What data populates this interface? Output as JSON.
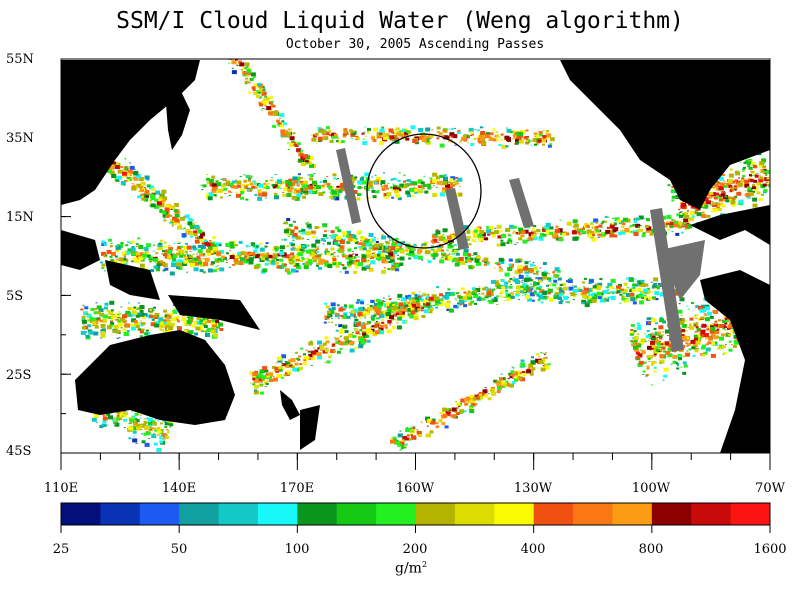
{
  "header": {
    "title": "SSM/I Cloud Liquid Water (Weng algorithm)",
    "subtitle": "October 30, 2005  Ascending Passes"
  },
  "map": {
    "region": "Pacific Ocean",
    "land_color": "#000000",
    "no_data_color": "#ffffff",
    "swath_gap_color": "#707070",
    "lat_labels": [
      "55N",
      "35N",
      "15N",
      "5S",
      "25S",
      "45S"
    ],
    "lat_values": [
      55,
      35,
      15,
      -5,
      -25,
      -45
    ],
    "lon_labels": [
      "110E",
      "140E",
      "170E",
      "160W",
      "130W",
      "100W",
      "70W"
    ],
    "lon_values": [
      110,
      140,
      170,
      200,
      230,
      260,
      290
    ]
  },
  "colorbar": {
    "colors": [
      "#04107a",
      "#0a32b4",
      "#1c5af0",
      "#10a0a0",
      "#14c8c8",
      "#18f8f8",
      "#0a961c",
      "#14c814",
      "#22f020",
      "#b4b400",
      "#dcdc00",
      "#fafa00",
      "#f05010",
      "#fa7814",
      "#fa9c14",
      "#8c0000",
      "#c80a0a",
      "#fa1414"
    ],
    "tick_labels": [
      "25",
      "50",
      "100",
      "200",
      "400",
      "800",
      "1600"
    ],
    "units_base": "g/m",
    "units_exp": "2"
  }
}
